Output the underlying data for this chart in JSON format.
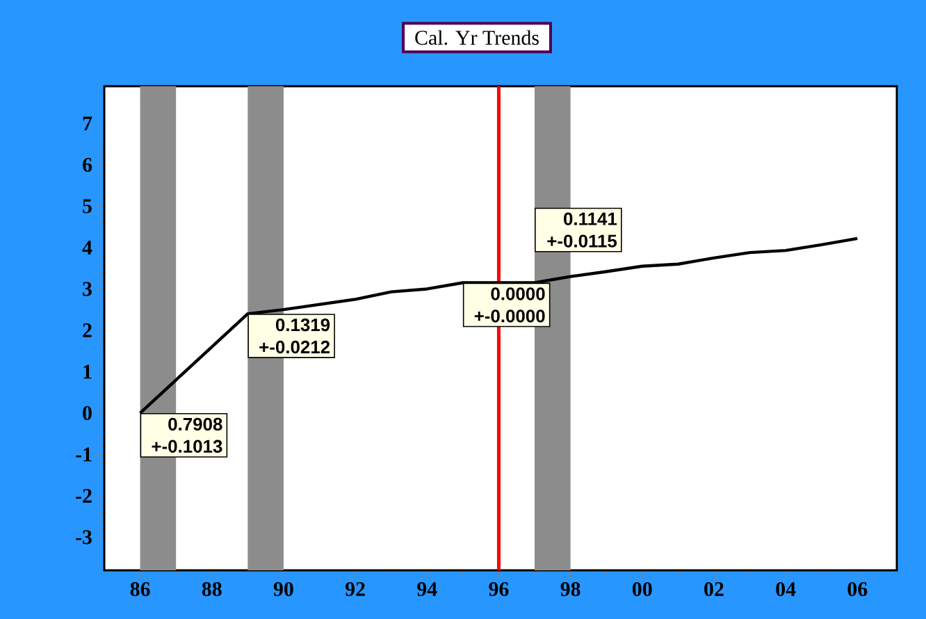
{
  "chart_data": {
    "type": "line",
    "title": "Cal. Yr Trends",
    "x": [
      1986,
      1989,
      1990,
      1992,
      1993,
      1994,
      1995,
      1996,
      1997,
      1998,
      1999,
      2000,
      2001,
      2002,
      2003,
      2004,
      2005,
      2006
    ],
    "series": [
      {
        "color": "#000000",
        "values": [
          0,
          2.4,
          2.5,
          2.75,
          2.93,
          3.0,
          3.15,
          3.15,
          3.15,
          3.3,
          3.42,
          3.55,
          3.6,
          3.75,
          3.88,
          3.93,
          4.07,
          4.22
        ]
      }
    ],
    "xlim": [
      1985,
      2007.1
    ],
    "ylim": [
      -3.8,
      7.9
    ],
    "xticks": [
      {
        "value": 1986,
        "label": "86"
      },
      {
        "value": 1988,
        "label": "88"
      },
      {
        "value": 1990,
        "label": "90"
      },
      {
        "value": 1992,
        "label": "92"
      },
      {
        "value": 1994,
        "label": "94"
      },
      {
        "value": 1996,
        "label": "96"
      },
      {
        "value": 1998,
        "label": "98"
      },
      {
        "value": 2000,
        "label": "00"
      },
      {
        "value": 2002,
        "label": "02"
      },
      {
        "value": 2004,
        "label": "04"
      },
      {
        "value": 2006,
        "label": "06"
      }
    ],
    "yticks": [
      -3,
      -2,
      -1,
      0,
      1,
      2,
      3,
      4,
      5,
      6,
      7
    ],
    "grid": false,
    "legend": false,
    "marker": "none",
    "line_style": "solid",
    "ref_lines": [
      {
        "axis": "x",
        "value": 1996,
        "color": "#ff0000"
      }
    ],
    "bands": [
      {
        "axis": "x",
        "from": 1986,
        "to": 1987,
        "color": "#8c8c8c"
      },
      {
        "axis": "x",
        "from": 1989,
        "to": 1990,
        "color": "#8c8c8c"
      },
      {
        "axis": "x",
        "from": 1997,
        "to": 1998,
        "color": "#8c8c8c"
      }
    ],
    "annotations": [
      {
        "text": "0.7908 +-0.1013",
        "x": 1986,
        "y": 0
      },
      {
        "text": "0.1319 +-0.0212",
        "x": 1989,
        "y": 2.4
      },
      {
        "text": "0.0000 +-0.0000",
        "x": 1995,
        "y": 3.15
      },
      {
        "text": "0.1141 +-0.0115",
        "x": 1997,
        "y": 3.15
      }
    ]
  }
}
